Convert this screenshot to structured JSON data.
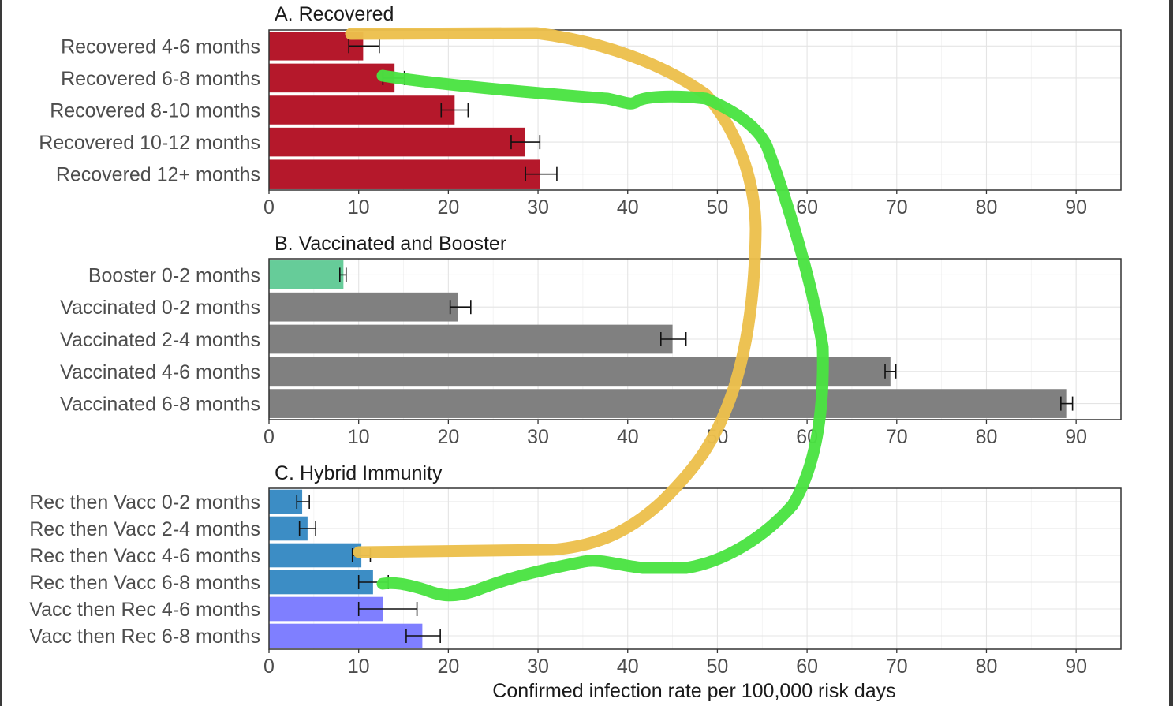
{
  "chart_data": {
    "type": "bar",
    "orientation": "horizontal",
    "xlabel": "Confirmed infection rate per 100,000 risk days",
    "xlim": [
      0,
      95
    ],
    "xticks": [
      0,
      10,
      20,
      30,
      40,
      50,
      60,
      70,
      80,
      90
    ],
    "grid": true,
    "panels": [
      {
        "title": "A. Recovered",
        "categories": [
          "Recovered 4-6 months",
          "Recovered 6-8 months",
          "Recovered 8-10 months",
          "Recovered 10-12 months",
          "Recovered 12+ months"
        ],
        "values": [
          10.5,
          14.0,
          20.7,
          28.5,
          30.2
        ],
        "error_low": [
          8.9,
          12.7,
          19.2,
          27.0,
          28.6
        ],
        "error_high": [
          12.3,
          15.1,
          22.2,
          30.2,
          32.1
        ],
        "colors": [
          "#b5182b",
          "#b5182b",
          "#b5182b",
          "#b5182b",
          "#b5182b"
        ]
      },
      {
        "title": "B. Vaccinated and Booster",
        "categories": [
          "Booster 0-2 months",
          "Vaccinated 0-2 months",
          "Vaccinated 2-4 months",
          "Vaccinated 4-6 months",
          "Vaccinated 6-8 months"
        ],
        "values": [
          8.3,
          21.1,
          45.0,
          69.3,
          88.9
        ],
        "error_low": [
          7.9,
          20.2,
          43.7,
          68.7,
          88.3
        ],
        "error_high": [
          8.6,
          22.5,
          46.5,
          69.9,
          89.6
        ],
        "colors": [
          "#66cc99",
          "#808080",
          "#808080",
          "#808080",
          "#808080"
        ]
      },
      {
        "title": "C. Hybrid Immunity",
        "categories": [
          "Rec then Vacc 0-2 months",
          "Rec then Vacc 2-4 months",
          "Rec then Vacc 4-6 months",
          "Rec then Vacc 6-8 months",
          "Vacc then Rec 4-6 months",
          "Vacc then Rec 6-8 months"
        ],
        "values": [
          3.7,
          4.3,
          10.3,
          11.6,
          12.7,
          17.1
        ],
        "error_low": [
          3.1,
          3.4,
          9.3,
          10.0,
          10.0,
          15.3
        ],
        "error_high": [
          4.5,
          5.2,
          11.3,
          13.3,
          16.5,
          19.1
        ],
        "colors": [
          "#3c8dc5",
          "#3c8dc5",
          "#3c8dc5",
          "#3c8dc5",
          "#7f7fff",
          "#7f7fff"
        ]
      }
    ],
    "annotations": [
      {
        "kind": "connector",
        "color": "#ecc04c",
        "from": "Recovered 4-6 months",
        "to": "Rec then Vacc 4-6 months"
      },
      {
        "kind": "connector",
        "color": "#4ae342",
        "from": "Recovered 6-8 months",
        "to": "Rec then Vacc 6-8 months"
      }
    ]
  }
}
